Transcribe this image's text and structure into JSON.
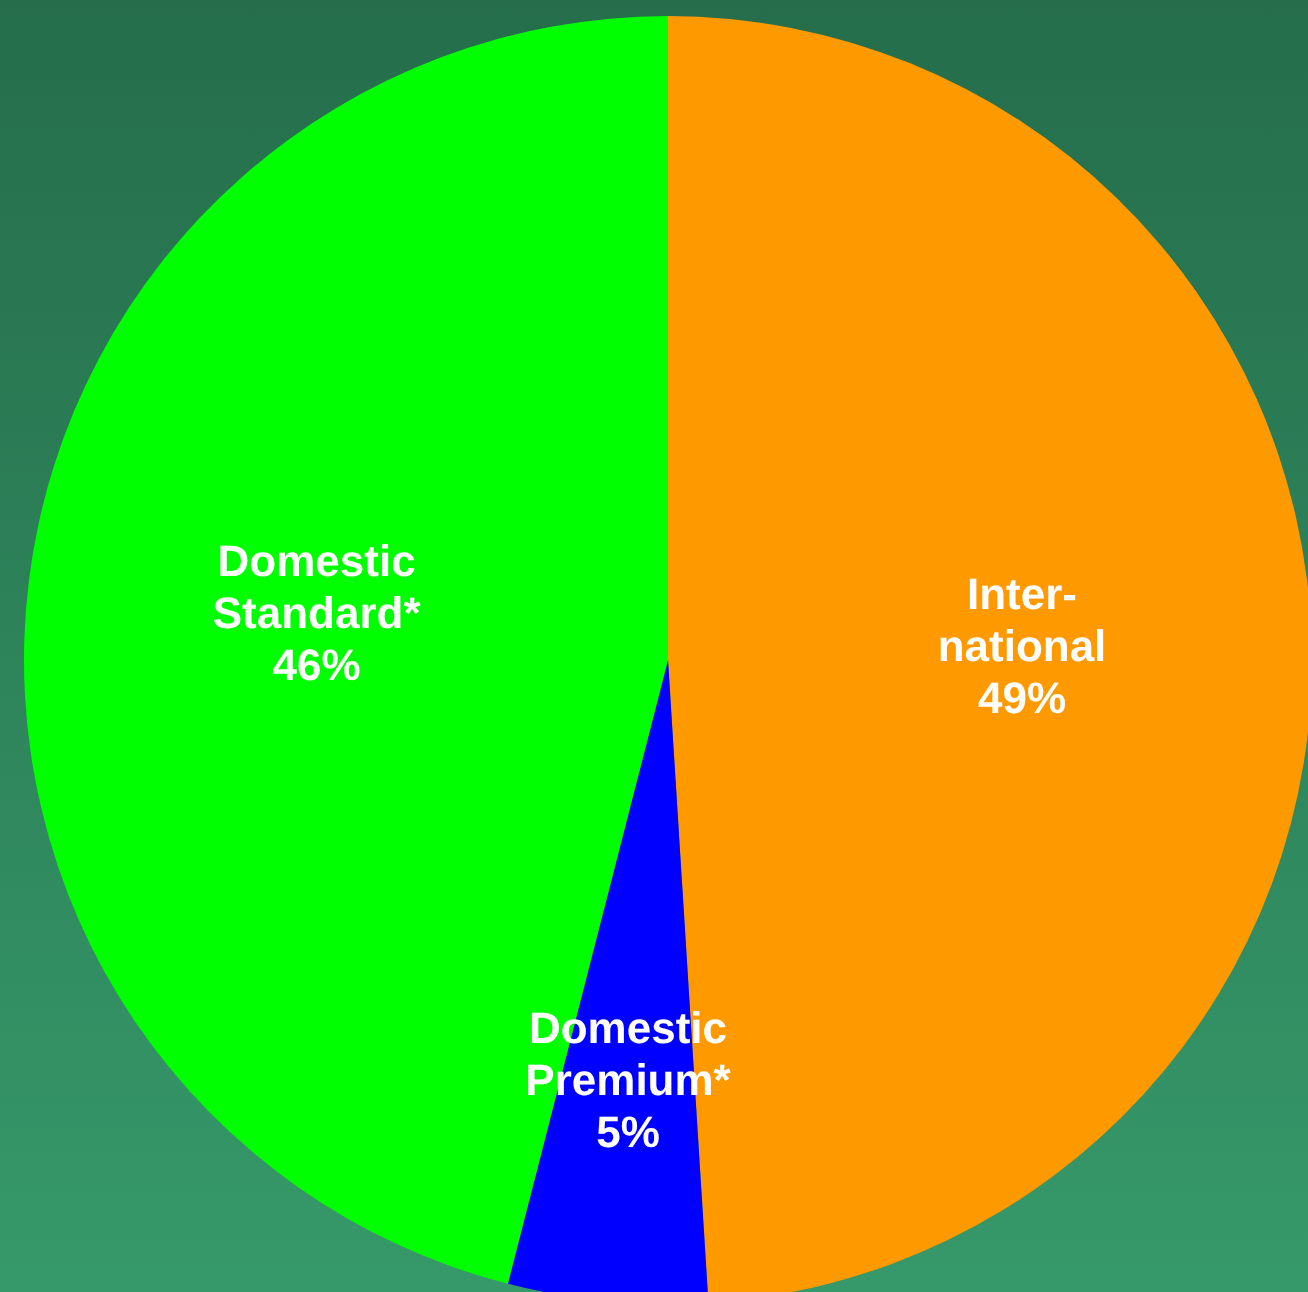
{
  "chart_data": {
    "type": "pie",
    "categories": [
      "Inter-\nnational",
      "Domestic\nPremium*",
      "Domestic\nStandard*"
    ],
    "values": [
      49,
      5,
      46
    ],
    "value_labels": [
      "49%",
      "5%",
      "46%"
    ],
    "colors": [
      "#ff9900",
      "#0000ff",
      "#00ff00"
    ],
    "legend": false
  }
}
